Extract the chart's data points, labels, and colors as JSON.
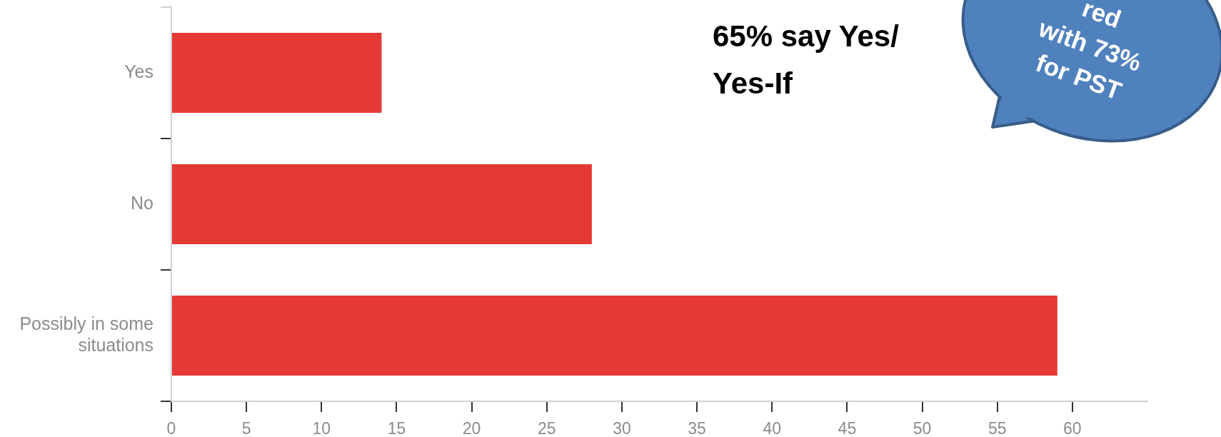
{
  "chart_data": {
    "type": "bar",
    "orientation": "horizontal",
    "categories": [
      "Yes",
      "No",
      "Possibly in some situations"
    ],
    "values": [
      14,
      28,
      59
    ],
    "color": "#e53935",
    "xlim": [
      0,
      65
    ],
    "xticks": [
      0,
      5,
      10,
      15,
      20,
      25,
      30,
      35,
      40,
      45,
      50,
      55,
      60
    ],
    "annotations": [
      "65% say Yes/\nYes-If",
      "red\nwith 73%\nfor PST"
    ]
  }
}
